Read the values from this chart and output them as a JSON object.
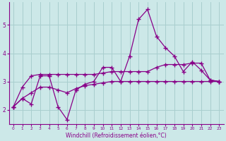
{
  "xlabel": "Windchill (Refroidissement éolien,°C)",
  "bg_color": "#cce8e8",
  "grid_color": "#a8cece",
  "line_color": "#880088",
  "x": [
    0,
    1,
    2,
    3,
    4,
    5,
    6,
    7,
    8,
    9,
    10,
    11,
    12,
    13,
    14,
    15,
    16,
    17,
    18,
    19,
    20,
    21,
    22,
    23
  ],
  "series_main": [
    2.1,
    2.4,
    2.2,
    3.2,
    3.2,
    2.1,
    1.65,
    2.7,
    2.9,
    3.0,
    3.5,
    3.5,
    3.0,
    3.9,
    5.2,
    5.55,
    4.6,
    4.2,
    3.9,
    3.35,
    3.7,
    3.4,
    3.05,
    3.0
  ],
  "series_upper": [
    2.1,
    2.8,
    3.2,
    3.25,
    3.25,
    3.25,
    3.25,
    3.25,
    3.25,
    3.25,
    3.3,
    3.35,
    3.35,
    3.35,
    3.35,
    3.35,
    3.5,
    3.6,
    3.6,
    3.6,
    3.65,
    3.65,
    3.05,
    3.0
  ],
  "series_lower": [
    2.1,
    2.4,
    2.6,
    2.8,
    2.8,
    2.7,
    2.6,
    2.75,
    2.85,
    2.9,
    2.95,
    3.0,
    3.0,
    3.0,
    3.0,
    3.0,
    3.0,
    3.0,
    3.0,
    3.0,
    3.0,
    3.0,
    3.0,
    3.0
  ],
  "ylim": [
    1.5,
    5.8
  ],
  "xlim": [
    -0.5,
    23.5
  ],
  "yticks": [
    2,
    3,
    4,
    5
  ],
  "xticks": [
    0,
    1,
    2,
    3,
    4,
    5,
    6,
    7,
    8,
    9,
    10,
    11,
    12,
    13,
    14,
    15,
    16,
    17,
    18,
    19,
    20,
    21,
    22,
    23
  ]
}
